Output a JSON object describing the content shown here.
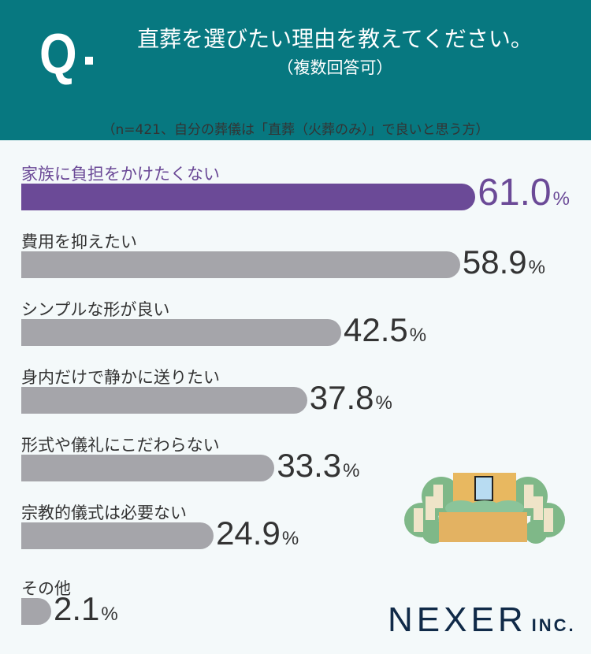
{
  "header": {
    "q": "Q",
    "title": "直葬を選びたい理由を教えてください。",
    "subtitle": "（複数回答可）"
  },
  "note": "（n=421、自分の葬儀は「直葬（火葬のみ）」で良いと思う方）",
  "colors": {
    "header": "#077880",
    "highlight": "#6b4a97",
    "bar": "#a5a5aa"
  },
  "chart_data": {
    "type": "bar",
    "orientation": "horizontal",
    "unit": "%",
    "categories": [
      "家族に負担をかけたくない",
      "費用を抑えたい",
      "シンプルな形が良い",
      "身内だけで静かに送りたい",
      "形式や儀礼にこだわらない",
      "宗教的儀式は必要ない",
      "その他"
    ],
    "values": [
      61.0,
      58.9,
      42.5,
      37.8,
      33.3,
      24.9,
      2.1
    ],
    "labels": [
      "61.0",
      "58.9",
      "42.5",
      "37.8",
      "33.3",
      "24.9",
      "2.1"
    ],
    "highlight_index": 0
  },
  "logo": {
    "main": "NEXER",
    "suffix": "INC."
  }
}
